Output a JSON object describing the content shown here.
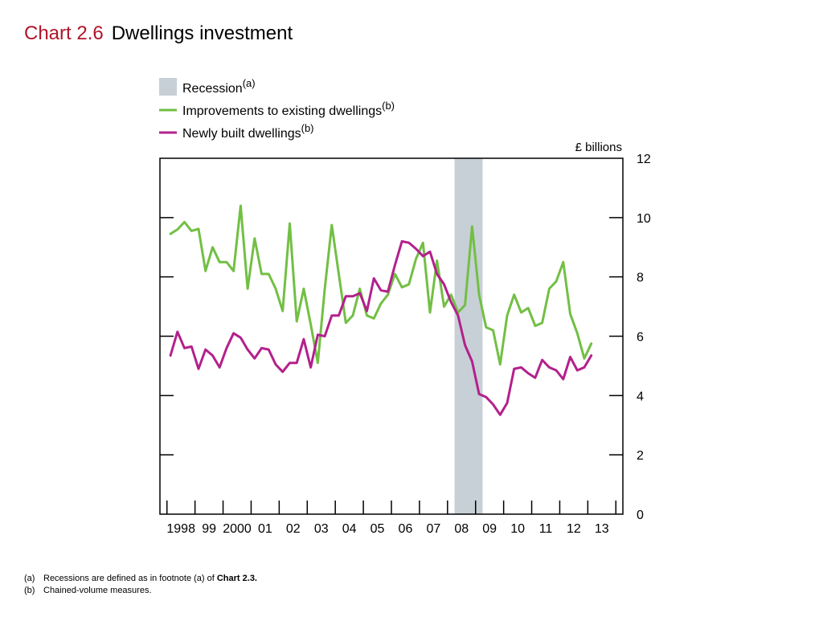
{
  "header": {
    "chart_number": "Chart 2.6",
    "chart_title": "Dwellings investment"
  },
  "legend": {
    "recession": {
      "label": "Recession",
      "note": "(a)"
    },
    "improvements": {
      "label": "Improvements to existing dwellings",
      "note": "(b)"
    },
    "newly_built": {
      "label": "Newly built dwellings",
      "note": "(b)"
    }
  },
  "footnotes": [
    {
      "key": "(a)",
      "text": "Recessions are defined as in footnote (a) of ",
      "ref": "Chart 2.3."
    },
    {
      "key": "(b)",
      "text": "Chained-volume measures.",
      "ref": ""
    }
  ],
  "chart_data": {
    "type": "line",
    "ylabel": "£ billions",
    "ylim": [
      0,
      12
    ],
    "yticks": [
      "0",
      "2",
      "4",
      "6",
      "8",
      "10",
      "12"
    ],
    "y_axis_side": "right",
    "xlim": [
      1997.75,
      2014.25
    ],
    "x_tick_labels": [
      {
        "label": "1998",
        "year": 1998
      },
      {
        "label": "99",
        "year": 1999
      },
      {
        "label": "2000",
        "year": 2000
      },
      {
        "label": "01",
        "year": 2001
      },
      {
        "label": "02",
        "year": 2002
      },
      {
        "label": "03",
        "year": 2003
      },
      {
        "label": "04",
        "year": 2004
      },
      {
        "label": "05",
        "year": 2005
      },
      {
        "label": "06",
        "year": 2006
      },
      {
        "label": "07",
        "year": 2007
      },
      {
        "label": "08",
        "year": 2008
      },
      {
        "label": "09",
        "year": 2009
      },
      {
        "label": "10",
        "year": 2010
      },
      {
        "label": "11",
        "year": 2011
      },
      {
        "label": "12",
        "year": 2012
      },
      {
        "label": "13",
        "year": 2013
      }
    ],
    "frequency": "quarterly",
    "start": "1998 Q1",
    "recession": {
      "start": "2008 Q2",
      "end": "2009 Q2"
    },
    "colors": {
      "improvements": "#72bf44",
      "newly_built": "#b3208c",
      "recession": "#c7d0d6",
      "axis": "#000000"
    },
    "series": [
      {
        "name": "Improvements to existing dwellings",
        "color": "#72bf44",
        "values": [
          9.45,
          9.6,
          9.85,
          9.55,
          9.62,
          8.2,
          9.0,
          8.5,
          8.5,
          8.2,
          10.4,
          7.6,
          9.3,
          8.1,
          8.1,
          7.6,
          6.85,
          9.8,
          6.5,
          7.6,
          6.4,
          5.1,
          7.6,
          9.75,
          8.1,
          6.45,
          6.7,
          7.6,
          6.7,
          6.6,
          7.1,
          7.4,
          8.1,
          7.65,
          7.75,
          8.6,
          9.15,
          6.8,
          8.55,
          7.0,
          7.4,
          6.8,
          7.05,
          9.7,
          7.4,
          6.3,
          6.2,
          5.05,
          6.7,
          7.4,
          6.8,
          6.95,
          6.35,
          6.45,
          7.6,
          7.85,
          8.5,
          6.75,
          6.1,
          5.25,
          5.75
        ]
      },
      {
        "name": "Newly built dwellings",
        "color": "#b3208c",
        "values": [
          5.35,
          6.15,
          5.6,
          5.65,
          4.9,
          5.55,
          5.35,
          4.95,
          5.6,
          6.1,
          5.95,
          5.55,
          5.25,
          5.6,
          5.55,
          5.05,
          4.8,
          5.1,
          5.1,
          5.9,
          4.95,
          6.05,
          6.0,
          6.7,
          6.7,
          7.35,
          7.35,
          7.45,
          6.85,
          7.95,
          7.55,
          7.5,
          8.4,
          9.2,
          9.15,
          8.95,
          8.7,
          8.85,
          8.1,
          7.75,
          7.15,
          6.7,
          5.7,
          5.15,
          4.05,
          3.95,
          3.7,
          3.35,
          3.75,
          4.9,
          4.95,
          4.75,
          4.6,
          5.2,
          4.95,
          4.85,
          4.55,
          5.3,
          4.85,
          4.95,
          5.35
        ]
      }
    ]
  }
}
